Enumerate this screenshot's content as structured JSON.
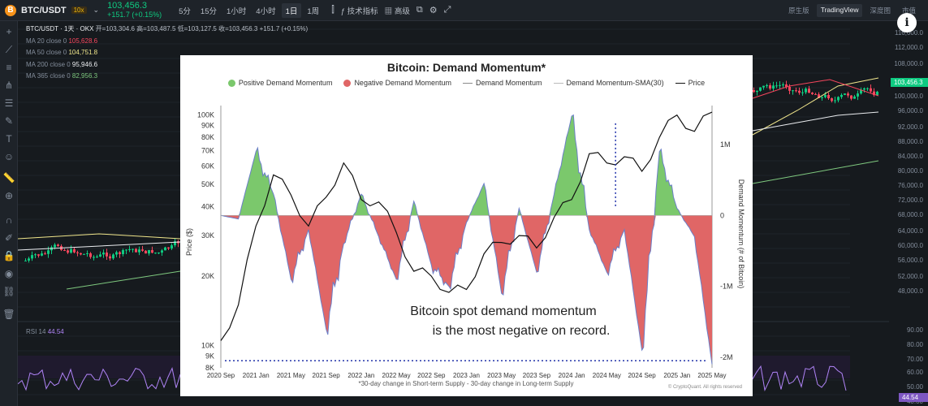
{
  "header": {
    "symbol": "BTC/USDT",
    "coin_glyph": "B",
    "leverage": "10x",
    "price": "103,456.3",
    "change": "+151.7 (+0.15%)",
    "intervals": [
      "5分",
      "15分",
      "1小时",
      "4小时",
      "1日",
      "1周"
    ],
    "active_interval": "1日",
    "tools": {
      "indicators": "技术指标",
      "advanced": "高级"
    },
    "views": [
      "原生版",
      "TradingView",
      "深度图",
      "市值"
    ],
    "active_view": "TradingView"
  },
  "legend": {
    "title": "BTC/USDT · 1天 · OKX",
    "ohlc": "开=103,304.6 高=103,487.5 低=103,127.5 收=103,456.3 +151.7 (+0.15%)",
    "mas": [
      {
        "label": "MA 20 close 0",
        "value": "105,628.6",
        "color": "#f6465d"
      },
      {
        "label": "MA 50 close 0",
        "value": "104,751.8",
        "color": "#f0e68c"
      },
      {
        "label": "MA 200 close 0",
        "value": "95,946.6",
        "color": "#eaecef"
      },
      {
        "label": "MA 365 close 0",
        "value": "82,956.3",
        "color": "#7fc97f"
      }
    ]
  },
  "rsi": {
    "label": "RSI 14",
    "value": "44.54"
  },
  "right_axis": {
    "labels": [
      "116,000.0",
      "112,000.0",
      "108,000.0",
      "100,000.0",
      "96,000.0",
      "92,000.0",
      "88,000.0",
      "84,000.0",
      "80,000.0",
      "76,000.0",
      "72,000.0",
      "68,000.0",
      "64,000.0",
      "60,000.0",
      "56,000.0",
      "52,000.0",
      "48,000.0",
      "90.00",
      "80.00",
      "70.00",
      "60.00",
      "50.00",
      "40.00"
    ],
    "current_price": "103,456.3",
    "rsi_value": "44.54"
  },
  "overlay": {
    "title": "Bitcoin: Demand Momentum*",
    "legend": [
      {
        "label": "Positive Demand Momentum",
        "color": "#7bc86c"
      },
      {
        "label": "Negative Demand Momentum",
        "color": "#e06666"
      },
      {
        "label": "Demand Momentum",
        "color": "#8a8a8a"
      },
      {
        "label": "Demand Momentum-SMA(30)",
        "color": "#bbbbbb"
      },
      {
        "label": "Price",
        "color": "#111111"
      }
    ],
    "y_left_label": "Price ($)",
    "y_right_label": "Demand Momentum (# of Bitcoin)",
    "y_left_ticks": [
      "100K",
      "90K",
      "80K",
      "70K",
      "60K",
      "50K",
      "40K",
      "30K",
      "20K",
      "10K",
      "9K",
      "8K"
    ],
    "y_right_ticks": [
      "1M",
      "0",
      "-1M",
      "-2M"
    ],
    "x_ticks": [
      "2020 Sep",
      "2021 Jan",
      "2021 May",
      "2021 Sep",
      "2022 Jan",
      "2022 May",
      "2022 Sep",
      "2023 Jan",
      "2023 May",
      "2023 Sep",
      "2024 Jan",
      "2024 May",
      "2024 Sep",
      "2025 Jan",
      "2025 May"
    ],
    "annotation_line1": "Bitcoin spot demand momentum",
    "annotation_line2": "is the most negative on record.",
    "footnote": "*30-day change in Short-term Supply - 30-day change in Long-term Supply",
    "credit": "© CryptoQuant. All rights reserved"
  },
  "chart_data": {
    "type": "area",
    "title": "Bitcoin: Demand Momentum*",
    "xlabel": "",
    "ylabel": "Price ($)",
    "y2label": "Demand Momentum (# of Bitcoin)",
    "x": [
      "2020 Sep",
      "2020 Nov",
      "2021 Jan",
      "2021 Mar",
      "2021 May",
      "2021 Jul",
      "2021 Sep",
      "2021 Nov",
      "2022 Jan",
      "2022 Mar",
      "2022 May",
      "2022 Jul",
      "2022 Sep",
      "2022 Nov",
      "2023 Jan",
      "2023 Mar",
      "2023 May",
      "2023 Jul",
      "2023 Sep",
      "2023 Nov",
      "2024 Jan",
      "2024 Mar",
      "2024 May",
      "2024 Jul",
      "2024 Sep",
      "2024 Nov",
      "2025 Jan",
      "2025 Mar",
      "2025 May"
    ],
    "series": [
      {
        "name": "Price",
        "axis": "left",
        "values": [
          10500,
          15000,
          33000,
          55000,
          45000,
          33000,
          44000,
          62000,
          43000,
          42000,
          31000,
          21000,
          20000,
          17000,
          17500,
          25000,
          28000,
          30000,
          26500,
          36000,
          43000,
          68000,
          62000,
          66000,
          57000,
          80000,
          100000,
          85000,
          103000
        ]
      },
      {
        "name": "Demand Momentum",
        "axis": "right",
        "values": [
          0,
          -50000,
          900000,
          300000,
          -900000,
          -200000,
          -1600000,
          -400000,
          300000,
          -300000,
          -900000,
          200000,
          -700000,
          -1000000,
          -100000,
          450000,
          -1100000,
          100000,
          -800000,
          300000,
          1400000,
          -200000,
          -800000,
          -200000,
          -1900000,
          900000,
          100000,
          -300000,
          -2100000
        ]
      }
    ],
    "ylim": [
      8000,
      110000
    ],
    "y2lim": [
      -2150000,
      1550000
    ],
    "log_left": true
  }
}
